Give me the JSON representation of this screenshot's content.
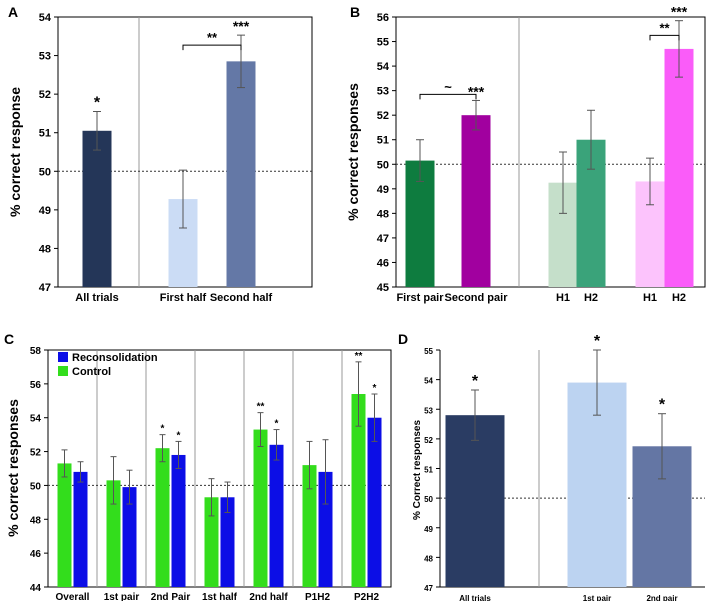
{
  "chart_data": [
    {
      "panel": "A",
      "type": "bar",
      "ylabel": "% correct response",
      "ylim": [
        47,
        54
      ],
      "yticks": [
        47,
        48,
        49,
        50,
        51,
        52,
        53,
        54
      ],
      "baseline": 50,
      "categories": [
        "All trials",
        "First half",
        "Second half"
      ],
      "values": [
        51.05,
        49.28,
        52.85
      ],
      "errors": [
        0.5,
        0.75,
        0.68
      ],
      "colors": [
        "#243658",
        "#cbdcf5",
        "#6478a6"
      ],
      "stars": [
        "*",
        "",
        "***"
      ],
      "brackets": [
        {
          "from": 1,
          "to": 2,
          "label": "**"
        }
      ],
      "separators_after": [
        0
      ]
    },
    {
      "panel": "B",
      "type": "bar",
      "ylabel": "% correct responses",
      "ylim": [
        45,
        56
      ],
      "yticks": [
        45,
        46,
        47,
        48,
        49,
        50,
        51,
        52,
        53,
        54,
        55,
        56
      ],
      "baseline": 50,
      "categories": [
        "First pair",
        "Second pair",
        "H1",
        "H2",
        "H1",
        "H2"
      ],
      "values": [
        50.15,
        52.0,
        49.25,
        51.0,
        49.3,
        54.7
      ],
      "errors": [
        0.85,
        0.6,
        1.25,
        1.2,
        0.95,
        1.15
      ],
      "colors": [
        "#0e7c3f",
        "#a1009f",
        "#c5dfca",
        "#3aa37a",
        "#fcc3fc",
        "#fa5cf9"
      ],
      "stars": [
        "",
        "***",
        "",
        "",
        "",
        "***"
      ],
      "brackets": [
        {
          "from": 0,
          "to": 1,
          "label": "~"
        },
        {
          "from": 4,
          "to": 5,
          "label": "**"
        }
      ],
      "separators_after": [
        1
      ]
    },
    {
      "panel": "C",
      "type": "bar",
      "ylabel": "% correct responses",
      "ylim": [
        44,
        58
      ],
      "yticks": [
        44,
        46,
        48,
        50,
        52,
        54,
        56,
        58
      ],
      "baseline": 50,
      "categories": [
        "Overall",
        "1st pair",
        "2nd Pair",
        "1st half",
        "2nd half",
        "P1H2",
        "P2H2"
      ],
      "series": [
        {
          "name": "Control",
          "color": "#33dd1c",
          "values": [
            51.3,
            50.3,
            52.2,
            49.3,
            53.3,
            51.2,
            55.4
          ],
          "errors": [
            0.8,
            1.4,
            0.8,
            1.1,
            1.0,
            1.4,
            1.9
          ],
          "stars": [
            "",
            "",
            "*",
            "",
            "**",
            "",
            "**"
          ]
        },
        {
          "name": "Reconsolidation",
          "color": "#0c0ee6",
          "values": [
            50.8,
            49.9,
            51.8,
            49.3,
            52.4,
            50.8,
            54.0
          ],
          "errors": [
            0.6,
            1.0,
            0.8,
            0.9,
            0.9,
            1.9,
            1.4
          ],
          "stars": [
            "",
            "",
            "*",
            "",
            "*",
            "",
            "*"
          ]
        }
      ],
      "legend": [
        "Reconsolidation",
        "Control"
      ]
    },
    {
      "panel": "D",
      "type": "bar",
      "ylabel": "% Correct responses",
      "ylim": [
        47,
        55
      ],
      "yticks": [
        47,
        48,
        49,
        50,
        51,
        52,
        53,
        54,
        55
      ],
      "baseline": 50,
      "categories": [
        "All trials",
        "1st pair",
        "2nd pair"
      ],
      "values": [
        52.8,
        53.9,
        51.75
      ],
      "errors": [
        0.85,
        1.1,
        1.1
      ],
      "colors": [
        "#2a3c63",
        "#bcd3f1",
        "#6476a4"
      ],
      "stars": [
        "*",
        "*",
        "*"
      ],
      "separators_after": [
        0
      ]
    }
  ]
}
